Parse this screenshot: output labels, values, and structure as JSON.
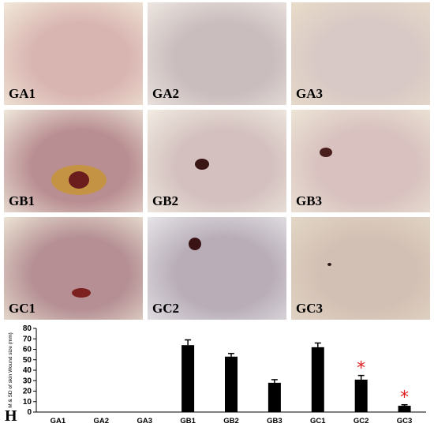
{
  "panels": [
    {
      "label": "GA1",
      "base": "#d9b5b1",
      "edge": "#f1e8d8",
      "wound": null
    },
    {
      "label": "GA2",
      "base": "#c9bdbd",
      "edge": "#ede6e0",
      "wound": null
    },
    {
      "label": "GA3",
      "base": "#d8c8c6",
      "edge": "#e8dcc8",
      "wound": null
    },
    {
      "label": "GB1",
      "base": "#b98e92",
      "edge": "#efe8db",
      "wound": "#6b1c1c"
    },
    {
      "label": "GB2",
      "base": "#d4c1bf",
      "edge": "#f1ece2",
      "wound": "#3b1616"
    },
    {
      "label": "GB3",
      "base": "#d8c1bf",
      "edge": "#ede5d6",
      "wound": "#4a1e1c"
    },
    {
      "label": "GC1",
      "base": "#b58f94",
      "edge": "#ece4d4",
      "wound": "#7c2020"
    },
    {
      "label": "GC2",
      "base": "#b9aeb8",
      "edge": "#e6e4e8",
      "wound": "#3a1414"
    },
    {
      "label": "GC3",
      "base": "#d3c0b4",
      "edge": "#e3d7c6",
      "wound": "#2b1a1a"
    }
  ],
  "chart_data": {
    "type": "bar",
    "categories": [
      "GA1",
      "GA2",
      "GA3",
      "GB1",
      "GB2",
      "GB3",
      "GC1",
      "GC2",
      "GC3"
    ],
    "values": [
      0,
      0,
      0,
      64,
      53,
      28,
      62,
      31,
      6
    ],
    "errors": [
      0,
      0,
      0,
      5,
      3,
      3,
      4,
      4,
      1
    ],
    "significant": [
      false,
      false,
      false,
      false,
      false,
      false,
      false,
      true,
      true
    ],
    "ylabel": "M & SD of skin Wound size (mm)",
    "ylim": [
      0,
      80
    ],
    "yticks": [
      0,
      10,
      20,
      30,
      40,
      50,
      60,
      70,
      80
    ],
    "bar_color": "#000000",
    "marker": "*",
    "marker_color": "#e02020",
    "panel_label": "H"
  }
}
